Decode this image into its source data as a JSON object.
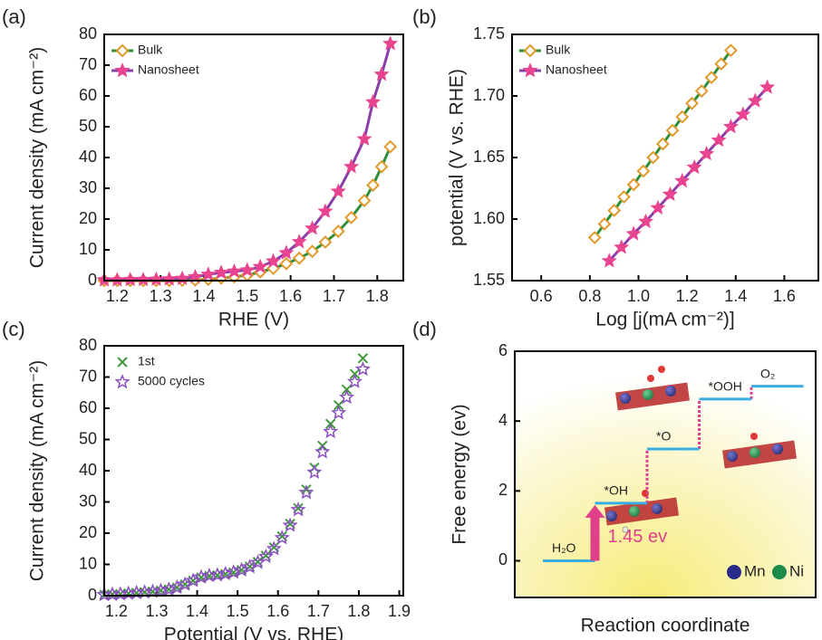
{
  "chart_data": [
    {
      "type": "line",
      "label": "(a)",
      "x_label": "RHE (V)",
      "y_label": "Current density (mA cm⁻²)",
      "xlim": [
        1.17,
        1.86
      ],
      "ylim": [
        0,
        80
      ],
      "xticks": [
        1.2,
        1.3,
        1.4,
        1.5,
        1.6,
        1.7,
        1.8
      ],
      "yticks": [
        0,
        10,
        20,
        30,
        40,
        50,
        60,
        70,
        80
      ],
      "show_line": true,
      "legend": "upper left",
      "x": [
        1.17,
        1.2,
        1.23,
        1.26,
        1.29,
        1.32,
        1.35,
        1.38,
        1.41,
        1.44,
        1.47,
        1.5,
        1.53,
        1.56,
        1.59,
        1.62,
        1.65,
        1.68,
        1.71,
        1.74,
        1.77,
        1.79,
        1.81,
        1.83
      ],
      "series": [
        {
          "name": "Bulk",
          "color": "#e39a2d",
          "line_color": "#2f8f3a",
          "marker": "diamond",
          "filled": false,
          "values": [
            0,
            0,
            0,
            0,
            0,
            0,
            0.1,
            0.2,
            0.4,
            0.8,
            1.2,
            1.8,
            2.8,
            4.0,
            5.5,
            7.3,
            9.5,
            12.5,
            16,
            20.5,
            26,
            31,
            37,
            43.5
          ]
        },
        {
          "name": "Nanosheet",
          "color": "#e8448f",
          "line_color": "#8a3fa8",
          "marker": "star",
          "filled": true,
          "values": [
            0.2,
            0.2,
            0.3,
            0.3,
            0.4,
            0.5,
            0.7,
            1.2,
            2.0,
            2.6,
            3.0,
            3.4,
            4.5,
            6.3,
            9.0,
            12.6,
            17,
            22.5,
            29,
            37,
            46,
            58,
            67,
            77
          ]
        }
      ]
    },
    {
      "type": "line",
      "label": "(b)",
      "x_label": "Log [j(mA cm⁻²)]",
      "y_label": "potential (V vs. RHE)",
      "xlim": [
        0.48,
        1.74
      ],
      "ylim": [
        1.55,
        1.75
      ],
      "xticks": [
        0.6,
        0.8,
        {
          "value": 1,
          "label": "1.0"
        },
        1.2,
        1.4,
        1.6
      ],
      "yticks": [
        1.55,
        {
          "value": 1.6,
          "label": "1.60"
        },
        1.65,
        {
          "value": 1.7,
          "label": "1.70"
        },
        1.75
      ],
      "show_line": true,
      "legend": "upper left",
      "series": [
        {
          "name": "Bulk",
          "color": "#e39a2d",
          "line_color": "#2f8f3a",
          "marker": "diamond",
          "filled": false,
          "x": [
            0.82,
            0.86,
            0.9,
            0.94,
            0.98,
            1.02,
            1.06,
            1.1,
            1.14,
            1.18,
            1.22,
            1.26,
            1.3,
            1.34,
            1.38
          ],
          "values": [
            1.585,
            1.596,
            1.607,
            1.618,
            1.628,
            1.639,
            1.65,
            1.661,
            1.672,
            1.683,
            1.694,
            1.704,
            1.715,
            1.726,
            1.737
          ]
        },
        {
          "name": "Nanosheet",
          "color": "#e8448f",
          "line_color": "#8a3fa8",
          "marker": "star",
          "filled": true,
          "x": [
            0.88,
            0.93,
            0.98,
            1.03,
            1.08,
            1.13,
            1.18,
            1.23,
            1.28,
            1.33,
            1.38,
            1.43,
            1.48,
            1.53
          ],
          "values": [
            1.566,
            1.577,
            1.588,
            1.598,
            1.609,
            1.62,
            1.631,
            1.642,
            1.653,
            1.664,
            1.675,
            1.685,
            1.696,
            1.707
          ]
        }
      ]
    },
    {
      "type": "line",
      "label": "(c)",
      "x_label": "Potential (V vs. RHE)",
      "y_label": "Current density (mA cm⁻²)",
      "xlim": [
        1.17,
        1.91
      ],
      "ylim": [
        0,
        80
      ],
      "xticks": [
        1.2,
        1.3,
        1.4,
        1.5,
        1.6,
        1.7,
        1.8,
        1.9
      ],
      "yticks": [
        0,
        10,
        20,
        30,
        40,
        50,
        60,
        70,
        80
      ],
      "show_line": false,
      "legend": "upper left",
      "x": [
        1.17,
        1.19,
        1.21,
        1.23,
        1.25,
        1.27,
        1.29,
        1.31,
        1.33,
        1.35,
        1.37,
        1.39,
        1.41,
        1.43,
        1.45,
        1.47,
        1.49,
        1.51,
        1.53,
        1.55,
        1.57,
        1.59,
        1.61,
        1.63,
        1.65,
        1.67,
        1.69,
        1.71,
        1.73,
        1.75,
        1.77,
        1.79,
        1.81
      ],
      "series": [
        {
          "name": "1st",
          "color": "#3f9a3a",
          "marker": "x",
          "filled": false,
          "values": [
            0.3,
            0.4,
            0.5,
            0.7,
            0.9,
            1.1,
            1.3,
            1.6,
            2.0,
            2.6,
            3.6,
            4.8,
            5.8,
            6.3,
            6.5,
            6.9,
            7.4,
            8.2,
            9.3,
            10.8,
            12.8,
            15.5,
            19,
            23,
            28,
            34,
            41,
            48,
            55,
            61,
            66,
            71,
            76
          ]
        },
        {
          "name": "5000 cycles",
          "color": "#8a4fc0",
          "marker": "star",
          "filled": false,
          "values": [
            0.3,
            0.4,
            0.5,
            0.7,
            0.9,
            1.1,
            1.3,
            1.6,
            2.0,
            2.6,
            3.6,
            4.8,
            5.9,
            6.4,
            6.6,
            7.0,
            7.5,
            8.2,
            9.2,
            10.6,
            12.5,
            15,
            18.5,
            22.5,
            27.5,
            33,
            39.5,
            46,
            52.5,
            58.5,
            63.5,
            68.5,
            72.5
          ]
        }
      ]
    },
    {
      "type": "energy_levels",
      "label": "(d)",
      "x_label": "Reaction coordinate",
      "y_label": "Free energy (ev)",
      "ylim": [
        -1.05,
        6
      ],
      "yticks": [
        0,
        2,
        4,
        6
      ],
      "states": [
        "H₂O",
        "*OH",
        "*O",
        "*OOH",
        "O₂"
      ],
      "values": [
        0,
        1.65,
        3.2,
        4.63,
        5.0
      ],
      "color": "#3aaee0",
      "connector_color": "#e0408a",
      "annotation": "1.45 ev",
      "legend": [
        {
          "name": "Mn",
          "color": "#2a2a8a"
        },
        {
          "name": "Ni",
          "color": "#1e8a4a"
        }
      ]
    }
  ]
}
